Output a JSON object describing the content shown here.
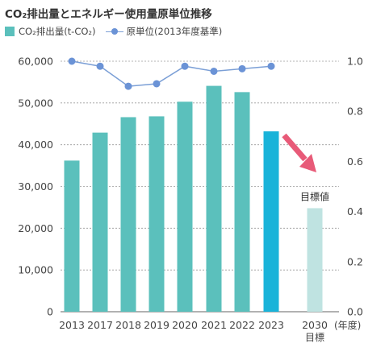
{
  "title": "CO₂排出量とエネルギー使用量原単位推移",
  "legend": {
    "bars_label": "CO₂排出量(t-CO₂)",
    "line_label": "原単位(2013年度基準)"
  },
  "chart_data": {
    "type": "bar",
    "categories": [
      "2013",
      "2017",
      "2018",
      "2019",
      "2020",
      "2021",
      "2022",
      "2023",
      "2030"
    ],
    "category_sublabels": {
      "2030": "目標"
    },
    "x_unit_label": "(年度)",
    "series": [
      {
        "name": "CO₂排出量(t-CO₂)",
        "type": "bar",
        "axis": "left",
        "values": [
          36200,
          42900,
          46600,
          46800,
          50300,
          54100,
          52600,
          43200,
          24800
        ],
        "colors": [
          "#5bc0bc",
          "#5bc0bc",
          "#5bc0bc",
          "#5bc0bc",
          "#5bc0bc",
          "#5bc0bc",
          "#5bc0bc",
          "#19b3d9",
          "#bfe3e1"
        ]
      },
      {
        "name": "原単位(2013年度基準)",
        "type": "line",
        "axis": "right",
        "values": [
          1.0,
          0.98,
          0.9,
          0.91,
          0.98,
          0.96,
          0.97,
          0.98,
          null
        ],
        "color": "#6b93d6"
      }
    ],
    "y_left": {
      "min": 0,
      "max": 60000,
      "ticks": [
        "0",
        "10,000",
        "20,000",
        "30,000",
        "40,000",
        "50,000",
        "60,000"
      ]
    },
    "y_right": {
      "min": 0.0,
      "max": 1.0,
      "ticks": [
        "0.0",
        "0.2",
        "0.4",
        "0.6",
        "0.8",
        "1.0"
      ]
    },
    "grid": "dashed horizontal",
    "annotations": [
      {
        "text": "目標値",
        "target": "2030"
      }
    ],
    "arrow": {
      "from": "2023",
      "to": "2030",
      "color": "#e85a78"
    }
  }
}
